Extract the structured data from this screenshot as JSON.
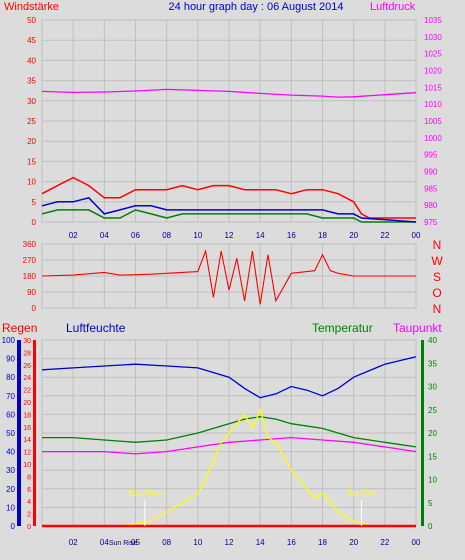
{
  "chart_data": [
    {
      "type": "line",
      "title": "24 hour graph day : 06 August 2014",
      "ylabel_left": "Windstärke",
      "ylabel_right": "Luftdruck",
      "ylim_left": [
        0,
        50
      ],
      "yticks_left": [
        "0",
        "5",
        "10",
        "15",
        "20",
        "25",
        "30",
        "35",
        "40",
        "45",
        "50"
      ],
      "ylim_right": [
        975,
        1035
      ],
      "yticks_right": [
        "975",
        "980",
        "985",
        "990",
        "995",
        "1000",
        "1005",
        "1010",
        "1015",
        "1020",
        "1025",
        "1030",
        "1035"
      ],
      "x_ticks": [
        "02",
        "04",
        "06",
        "08",
        "10",
        "12",
        "14",
        "16",
        "18",
        "20",
        "22",
        "00"
      ],
      "grid": true,
      "series": [
        {
          "color": "#ff0000",
          "values_x": [
            0,
            1,
            2,
            3,
            4,
            5,
            6,
            7,
            8,
            9,
            10,
            11,
            12,
            13,
            14,
            15,
            16,
            17,
            18,
            19,
            20,
            20.5,
            21,
            22,
            23,
            24
          ],
          "values_y": [
            7,
            9,
            11,
            9,
            6,
            6,
            8,
            8,
            8,
            9,
            8,
            9,
            9,
            8,
            8,
            8,
            7,
            8,
            8,
            7,
            5,
            2,
            1,
            1,
            1,
            1
          ]
        },
        {
          "color": "#008000",
          "values_x": [
            0,
            1,
            2,
            3,
            4,
            5,
            6,
            7,
            8,
            9,
            10,
            11,
            12,
            13,
            14,
            15,
            16,
            17,
            18,
            19,
            20,
            20.5,
            24
          ],
          "values_y": [
            2,
            3,
            3,
            3,
            1,
            1,
            3,
            2,
            1,
            2,
            2,
            2,
            2,
            2,
            2,
            2,
            2,
            2,
            1,
            1,
            1,
            0,
            0
          ]
        },
        {
          "color": "#0000cc",
          "values_x": [
            0,
            1,
            2,
            3,
            4,
            5,
            6,
            7,
            8,
            9,
            10,
            11,
            12,
            13,
            14,
            15,
            16,
            17,
            18,
            19,
            20,
            20.5,
            24
          ],
          "values_y": [
            4,
            5,
            5,
            6,
            2,
            3,
            4,
            4,
            3,
            3,
            3,
            3,
            3,
            3,
            3,
            3,
            3,
            3,
            3,
            2,
            2,
            1,
            0
          ]
        },
        {
          "color": "#ff00ff",
          "axis": "right",
          "values_x": [
            0,
            2,
            4,
            6,
            8,
            10,
            12,
            14,
            16,
            18,
            19,
            20,
            22,
            24
          ],
          "values_y": [
            1013.8,
            1013.5,
            1013.6,
            1013.9,
            1014.4,
            1014.1,
            1013.8,
            1013.2,
            1012.7,
            1012.4,
            1012.1,
            1012.2,
            1012.8,
            1013.4
          ]
        }
      ]
    },
    {
      "type": "line",
      "ylim": [
        0,
        360
      ],
      "yticks": [
        "0",
        "90",
        "180",
        "270",
        "360"
      ],
      "compass": [
        "N",
        "W",
        "S",
        "O",
        "N"
      ],
      "x_ticks": [
        "02",
        "04",
        "06",
        "08",
        "10",
        "12",
        "14",
        "16",
        "18",
        "20",
        "22",
        "00"
      ],
      "grid": true,
      "series": [
        {
          "color": "#ff0000",
          "values_x": [
            0,
            2,
            4,
            5,
            7,
            8,
            9,
            10,
            10.5,
            11,
            11.5,
            12,
            12.5,
            13,
            13.5,
            14,
            14.5,
            15,
            16,
            16.5,
            17,
            17.5,
            18,
            18.5,
            19,
            20,
            24
          ],
          "values_y": [
            180,
            185,
            200,
            185,
            190,
            195,
            200,
            205,
            320,
            60,
            320,
            100,
            280,
            40,
            320,
            20,
            300,
            40,
            195,
            200,
            205,
            210,
            300,
            210,
            195,
            180,
            180
          ]
        }
      ]
    },
    {
      "type": "line",
      "labels": {
        "rain": "Regen",
        "humidity": "Luftfeuchte",
        "temperature": "Temperatur",
        "dewpoint": "Taupunkt"
      },
      "ylim_humidity": [
        0,
        100
      ],
      "yticks_humidity": [
        "0",
        "10",
        "20",
        "30",
        "40",
        "50",
        "60",
        "70",
        "80",
        "90",
        "100"
      ],
      "ylim_rain": [
        0,
        30
      ],
      "yticks_rain": [
        "0",
        "2",
        "4",
        "6",
        "8",
        "10",
        "12",
        "14",
        "16",
        "18",
        "20",
        "22",
        "24",
        "26",
        "28",
        "30"
      ],
      "ylim_temperature": [
        0,
        40
      ],
      "yticks_temperature": [
        "0",
        "5",
        "10",
        "15",
        "20",
        "25",
        "30",
        "35",
        "40"
      ],
      "x_ticks": [
        "02",
        "04",
        "05 Sun Rise",
        "08",
        "10",
        "12",
        "14",
        "16",
        "18",
        "20",
        "22",
        "00"
      ],
      "annotations": [
        "Sun Rise",
        "Sun Set",
        "Sun Rise"
      ],
      "grid": true,
      "series": [
        {
          "color": "#0000cc",
          "axis": "humidity",
          "values_x": [
            0,
            2,
            4,
            6,
            8,
            10,
            12,
            13,
            14,
            15,
            16,
            17,
            18,
            19,
            20,
            22,
            24
          ],
          "values_y": [
            84,
            85,
            86,
            87,
            86,
            85,
            80,
            74,
            69,
            71,
            75,
            73,
            70,
            74,
            80,
            87,
            91
          ]
        },
        {
          "color": "#008000",
          "axis": "temperature",
          "values_x": [
            0,
            2,
            4,
            6,
            8,
            10,
            12,
            13,
            14,
            15,
            16,
            18,
            20,
            22,
            24
          ],
          "values_y": [
            19,
            19,
            18.5,
            18,
            18.5,
            20,
            22,
            23,
            23.5,
            23,
            22,
            21,
            19,
            18,
            17
          ]
        },
        {
          "color": "#ff00ff",
          "axis": "temperature",
          "values_x": [
            0,
            2,
            4,
            6,
            8,
            10,
            12,
            14,
            16,
            18,
            20,
            22,
            24
          ],
          "values_y": [
            16,
            16,
            16,
            15.5,
            16,
            17,
            18,
            18.5,
            19,
            18.5,
            18,
            17,
            16
          ]
        },
        {
          "color": "#ffff00",
          "axis": "temperature",
          "values_x": [
            0,
            5,
            6,
            7,
            8,
            9,
            10,
            10.5,
            11,
            11.5,
            12,
            12.5,
            13,
            13.5,
            14,
            14.5,
            15,
            15.5,
            16,
            16.5,
            17,
            17.5,
            18,
            18.5,
            19,
            20,
            21,
            24
          ],
          "values_y": [
            0,
            0,
            0.5,
            1,
            3,
            5,
            7,
            10,
            14,
            18,
            20,
            22,
            24,
            21,
            25,
            19,
            18,
            15,
            12,
            10,
            8,
            6,
            7,
            5,
            3,
            1,
            0,
            0
          ]
        },
        {
          "color": "#ff0000",
          "axis": "rain",
          "values_x": [
            0,
            24
          ],
          "values_y": [
            0,
            0
          ]
        }
      ]
    }
  ]
}
